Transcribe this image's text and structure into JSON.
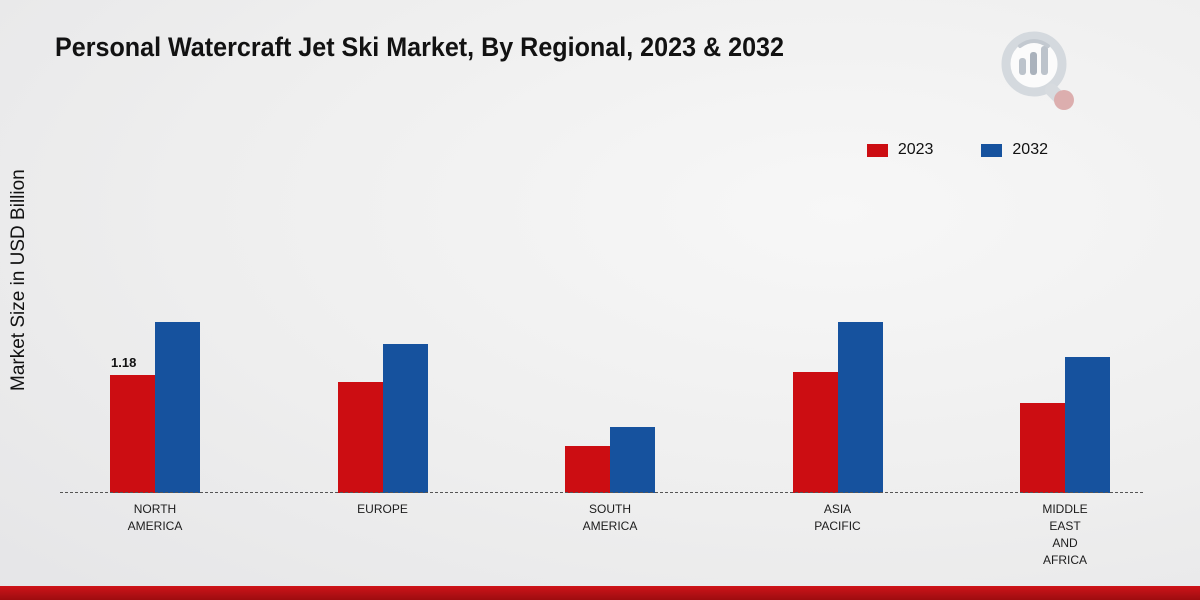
{
  "page": {
    "title": "Personal Watercraft Jet Ski Market, By Regional, 2023 & 2032",
    "y_axis_label": "Market Size in USD Billion"
  },
  "chart_data": {
    "type": "bar",
    "title": "Personal Watercraft Jet Ski Market, By Regional, 2023 & 2032",
    "xlabel": "",
    "ylabel": "Market Size in USD Billion",
    "categories": [
      "NORTH AMERICA",
      "EUROPE",
      "SOUTH AMERICA",
      "ASIA PACIFIC",
      "MIDDLE EAST AND AFRICA"
    ],
    "tick_labels": [
      "NORTH\nAMERICA",
      "EUROPE",
      "SOUTH\nAMERICA",
      "ASIA\nPACIFIC",
      "MIDDLE\nEAST\nAND\nAFRICA"
    ],
    "series": [
      {
        "name": "2023",
        "color": "#cc0d12",
        "values": [
          1.18,
          1.11,
          0.47,
          1.21,
          0.9
        ]
      },
      {
        "name": "2032",
        "color": "#16529e",
        "values": [
          1.71,
          1.49,
          0.66,
          1.71,
          1.36
        ]
      }
    ],
    "data_labels": [
      {
        "series": "2023",
        "category": "NORTH AMERICA",
        "text": "1.18"
      }
    ],
    "ylim": [
      0,
      2
    ],
    "grid": false,
    "legend_position": "top-right",
    "axis_line_style": "dashed",
    "units": "USD Billion"
  },
  "colors": {
    "accent_red": "#cc0d12",
    "accent_blue": "#16529e",
    "bottom_bar_red": "#b01014"
  }
}
